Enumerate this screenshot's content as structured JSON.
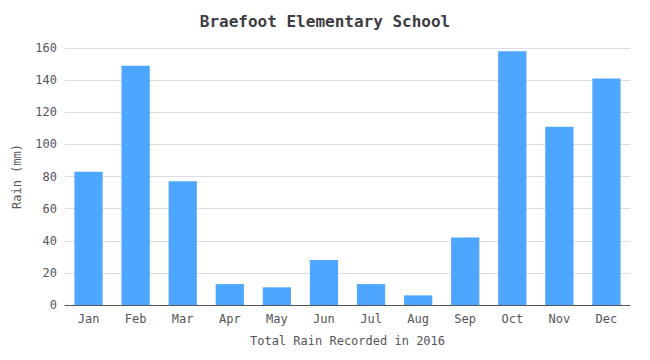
{
  "chart_data": {
    "type": "bar",
    "title": "Braefoot Elementary School",
    "xlabel": "Total Rain Recorded in 2016",
    "ylabel": "Rain (mm)",
    "categories": [
      "Jan",
      "Feb",
      "Mar",
      "Apr",
      "May",
      "Jun",
      "Jul",
      "Aug",
      "Sep",
      "Oct",
      "Nov",
      "Dec"
    ],
    "values": [
      83,
      149,
      77,
      13,
      11,
      28,
      13,
      6,
      42,
      158,
      111,
      141
    ],
    "color": "#4da6ff",
    "ylim": [
      0,
      160
    ],
    "yticks": [
      0,
      20,
      40,
      60,
      80,
      100,
      120,
      140,
      160
    ],
    "grid": true
  }
}
